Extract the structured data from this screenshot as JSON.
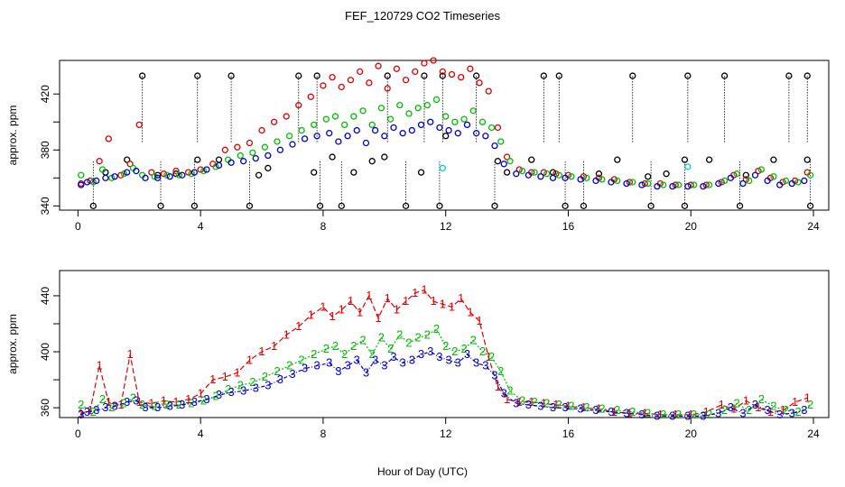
{
  "chart_data": {
    "type": "scatter",
    "title": "FEF_120729  CO2 Timeseries",
    "xlabel": "Hour of Day (UTC)",
    "xlim": [
      -0.6,
      24.5
    ],
    "xticks": [
      0,
      4,
      8,
      12,
      16,
      20,
      24
    ],
    "colors": {
      "s1": "#dd0000",
      "s2": "#00bb00",
      "s3": "#0000cc",
      "raw": "#000000",
      "cyan": "#00cccc"
    },
    "panels": [
      {
        "name": "top",
        "ylabel": "approx. ppm",
        "ylim": [
          337,
          444
        ],
        "yticks": [
          340,
          360,
          380,
          400,
          420
        ],
        "ytick_labels": [
          "340",
          "380",
          "420"
        ],
        "ytick_labeled": [
          340,
          380,
          420
        ],
        "raw_high": [
          2.1,
          3.9,
          5.0,
          7.2,
          7.8,
          10.1,
          11.3,
          11.9,
          13.0,
          15.2,
          15.7,
          18.1,
          19.9,
          21.1,
          23.2,
          23.8
        ],
        "raw_low": [
          0.5,
          2.7,
          3.8,
          5.6,
          7.9,
          8.6,
          10.7,
          11.8,
          13.6,
          15.9,
          16.5,
          18.7,
          19.8,
          21.6,
          23.9
        ],
        "raw_high_value": 433,
        "raw_low_value": 340,
        "raw_mid": [
          [
            0.9,
            364
          ],
          [
            1.6,
            373
          ],
          [
            2.6,
            362
          ],
          [
            3.2,
            363
          ],
          [
            3.9,
            373
          ],
          [
            4.6,
            373
          ],
          [
            5.9,
            362
          ],
          [
            6.2,
            367
          ],
          [
            7.7,
            364
          ],
          [
            8.3,
            375
          ],
          [
            9.0,
            364
          ],
          [
            9.6,
            372
          ],
          [
            10.0,
            375
          ],
          [
            11.2,
            364
          ],
          [
            12.0,
            390
          ],
          [
            13.7,
            372
          ],
          [
            14.0,
            364
          ],
          [
            14.8,
            373
          ],
          [
            15.5,
            364
          ],
          [
            17.0,
            363
          ],
          [
            17.6,
            373
          ],
          [
            18.6,
            361
          ],
          [
            19.2,
            363
          ],
          [
            19.8,
            373
          ],
          [
            20.6,
            373
          ],
          [
            21.8,
            362
          ],
          [
            22.7,
            373
          ],
          [
            23.8,
            373
          ]
        ],
        "cyan_points": [
          [
            11.9,
            367
          ],
          [
            19.9,
            368
          ]
        ],
        "series": [
          {
            "name": "1",
            "symbol": "o",
            "x": [
              0.1,
              0.4,
              0.7,
              1.0,
              1.4,
              1.7,
              2.0,
              2.4,
              2.8,
              3.2,
              3.6,
              4.0,
              4.4,
              4.8,
              5.2,
              5.6,
              6.0,
              6.4,
              6.8,
              7.2,
              7.6,
              8.0,
              8.3,
              8.6,
              8.9,
              9.2,
              9.5,
              9.8,
              10.1,
              10.4,
              10.7,
              11.0,
              11.3,
              11.6,
              11.9,
              12.2,
              12.5,
              12.8,
              13.1,
              13.4,
              13.7,
              14.0,
              14.4,
              14.8,
              15.2,
              15.6,
              16.0,
              16.5,
              17.0,
              17.5,
              18.0,
              18.5,
              19.0,
              19.5,
              20.0,
              20.5,
              21.0,
              21.4,
              21.8,
              22.2,
              22.6,
              23.0,
              23.4,
              23.8
            ],
            "y": [
              356,
              358,
              372,
              388,
              362,
              370,
              398,
              364,
              363,
              365,
              364,
              366,
              370,
              380,
              382,
              385,
              394,
              400,
              404,
              412,
              418,
              426,
              432,
              425,
              430,
              436,
              428,
              440,
              424,
              438,
              430,
              436,
              442,
              444,
              436,
              434,
              432,
              438,
              428,
              422,
              396,
              375,
              366,
              364,
              364,
              363,
              362,
              361,
              360,
              359,
              357,
              356,
              356,
              355,
              355,
              355,
              357,
              362,
              359,
              365,
              360,
              357,
              358,
              364
            ]
          },
          {
            "name": "2",
            "symbol": "o",
            "x": [
              0.1,
              0.5,
              0.8,
              1.1,
              1.5,
              1.8,
              2.1,
              2.5,
              2.9,
              3.3,
              3.7,
              4.1,
              4.5,
              4.9,
              5.3,
              5.7,
              6.1,
              6.5,
              6.9,
              7.3,
              7.7,
              8.1,
              8.4,
              8.7,
              9.0,
              9.3,
              9.6,
              9.9,
              10.2,
              10.5,
              10.8,
              11.1,
              11.4,
              11.7,
              12.0,
              12.3,
              12.6,
              12.9,
              13.2,
              13.5,
              13.8,
              14.1,
              14.5,
              14.9,
              15.3,
              15.7,
              16.1,
              16.6,
              17.1,
              17.6,
              18.1,
              18.6,
              19.1,
              19.6,
              20.1,
              20.6,
              21.1,
              21.5,
              21.9,
              22.3,
              22.7,
              23.1,
              23.5,
              23.9
            ],
            "y": [
              362,
              357,
              366,
              360,
              363,
              367,
              362,
              361,
              362,
              362,
              363,
              365,
              368,
              373,
              376,
              378,
              382,
              386,
              390,
              394,
              398,
              402,
              404,
              398,
              404,
              408,
              398,
              410,
              402,
              412,
              406,
              410,
              412,
              416,
              404,
              400,
              402,
              408,
              400,
              396,
              386,
              372,
              365,
              364,
              363,
              362,
              361,
              360,
              359,
              358,
              357,
              356,
              355,
              355,
              355,
              355,
              358,
              363,
              358,
              366,
              361,
              358,
              357,
              362
            ]
          },
          {
            "name": "3",
            "symbol": "o",
            "x": [
              0.1,
              0.3,
              0.6,
              0.9,
              1.2,
              1.6,
              1.9,
              2.2,
              2.6,
              3.0,
              3.4,
              3.8,
              4.2,
              4.6,
              5.0,
              5.4,
              5.8,
              6.2,
              6.6,
              7.0,
              7.4,
              7.8,
              8.2,
              8.5,
              8.8,
              9.1,
              9.4,
              9.7,
              10.0,
              10.3,
              10.6,
              10.9,
              11.2,
              11.5,
              11.8,
              12.1,
              12.4,
              12.7,
              13.0,
              13.3,
              13.6,
              13.9,
              14.3,
              14.7,
              15.1,
              15.5,
              15.9,
              16.4,
              16.9,
              17.4,
              17.9,
              18.4,
              18.9,
              19.4,
              19.9,
              20.4,
              20.9,
              21.3,
              21.7,
              22.1,
              22.5,
              22.9,
              23.3,
              23.7
            ],
            "y": [
              355,
              357,
              358,
              360,
              361,
              364,
              365,
              360,
              360,
              361,
              362,
              364,
              366,
              369,
              371,
              372,
              374,
              376,
              380,
              384,
              388,
              390,
              392,
              386,
              390,
              394,
              385,
              394,
              390,
              396,
              392,
              394,
              398,
              400,
              396,
              394,
              392,
              398,
              392,
              390,
              383,
              370,
              363,
              362,
              361,
              360,
              360,
              359,
              358,
              357,
              356,
              355,
              354,
              354,
              354,
              354,
              356,
              360,
              356,
              362,
              358,
              355,
              356,
              358
            ]
          }
        ]
      },
      {
        "name": "bottom",
        "ylabel": "approx. ppm",
        "ylim": [
          353,
          458
        ],
        "yticks": [
          360,
          380,
          400,
          420,
          440
        ],
        "ytick_labels": [
          "360",
          "400",
          "440"
        ],
        "ytick_labeled": [
          360,
          400,
          440
        ],
        "series": [
          {
            "name": "1",
            "symbol": "1",
            "x": [
              0.1,
              0.4,
              0.7,
              1.0,
              1.4,
              1.7,
              2.0,
              2.4,
              2.8,
              3.2,
              3.6,
              4.0,
              4.4,
              4.8,
              5.2,
              5.6,
              6.0,
              6.4,
              6.8,
              7.2,
              7.6,
              8.0,
              8.3,
              8.6,
              8.9,
              9.2,
              9.5,
              9.8,
              10.1,
              10.4,
              10.7,
              11.0,
              11.3,
              11.6,
              11.9,
              12.2,
              12.5,
              12.8,
              13.1,
              13.4,
              13.7,
              14.0,
              14.4,
              14.8,
              15.2,
              15.6,
              16.0,
              16.5,
              17.0,
              17.5,
              18.0,
              18.5,
              19.0,
              19.5,
              20.0,
              20.5,
              21.0,
              21.4,
              21.8,
              22.2,
              22.6,
              23.0,
              23.4,
              23.8
            ],
            "y": [
              356,
              358,
              390,
              364,
              362,
              398,
              364,
              363,
              365,
              364,
              366,
              370,
              380,
              382,
              385,
              394,
              400,
              404,
              412,
              418,
              426,
              432,
              425,
              430,
              436,
              428,
              440,
              424,
              438,
              430,
              436,
              442,
              444,
              436,
              434,
              432,
              438,
              428,
              422,
              396,
              375,
              366,
              364,
              364,
              363,
              362,
              361,
              360,
              359,
              357,
              356,
              356,
              355,
              355,
              355,
              357,
              362,
              359,
              365,
              360,
              357,
              358,
              364,
              367
            ]
          },
          {
            "name": "2",
            "symbol": "2",
            "x": [
              0.1,
              0.5,
              0.8,
              1.1,
              1.5,
              1.8,
              2.1,
              2.5,
              2.9,
              3.3,
              3.7,
              4.1,
              4.5,
              4.9,
              5.3,
              5.7,
              6.1,
              6.5,
              6.9,
              7.3,
              7.7,
              8.1,
              8.4,
              8.7,
              9.0,
              9.3,
              9.6,
              9.9,
              10.2,
              10.5,
              10.8,
              11.1,
              11.4,
              11.7,
              12.0,
              12.3,
              12.6,
              12.9,
              13.2,
              13.5,
              13.8,
              14.1,
              14.5,
              14.9,
              15.3,
              15.7,
              16.1,
              16.6,
              17.1,
              17.6,
              18.1,
              18.6,
              19.1,
              19.6,
              20.1,
              20.6,
              21.1,
              21.5,
              21.9,
              22.3,
              22.7,
              23.1,
              23.5,
              23.9
            ],
            "y": [
              362,
              357,
              366,
              360,
              363,
              367,
              362,
              361,
              362,
              362,
              363,
              365,
              368,
              373,
              376,
              378,
              382,
              386,
              390,
              394,
              398,
              402,
              404,
              398,
              404,
              408,
              398,
              410,
              402,
              412,
              406,
              410,
              412,
              416,
              404,
              400,
              402,
              408,
              400,
              396,
              386,
              372,
              365,
              364,
              363,
              362,
              361,
              360,
              359,
              358,
              357,
              356,
              355,
              355,
              355,
              355,
              358,
              363,
              358,
              366,
              361,
              358,
              357,
              362
            ]
          },
          {
            "name": "3",
            "symbol": "3",
            "x": [
              0.1,
              0.3,
              0.6,
              0.9,
              1.2,
              1.6,
              1.9,
              2.2,
              2.6,
              3.0,
              3.4,
              3.8,
              4.2,
              4.6,
              5.0,
              5.4,
              5.8,
              6.2,
              6.6,
              7.0,
              7.4,
              7.8,
              8.2,
              8.5,
              8.8,
              9.1,
              9.4,
              9.7,
              10.0,
              10.3,
              10.6,
              10.9,
              11.2,
              11.5,
              11.8,
              12.1,
              12.4,
              12.7,
              13.0,
              13.3,
              13.6,
              13.9,
              14.3,
              14.7,
              15.1,
              15.5,
              15.9,
              16.4,
              16.9,
              17.4,
              17.9,
              18.4,
              18.9,
              19.4,
              19.9,
              20.4,
              20.9,
              21.3,
              21.7,
              22.1,
              22.5,
              22.9,
              23.3,
              23.7
            ],
            "y": [
              355,
              357,
              358,
              360,
              361,
              364,
              365,
              360,
              360,
              361,
              362,
              364,
              366,
              369,
              371,
              372,
              374,
              376,
              380,
              384,
              388,
              390,
              392,
              386,
              390,
              394,
              385,
              394,
              390,
              396,
              392,
              394,
              398,
              400,
              396,
              394,
              392,
              398,
              392,
              390,
              383,
              370,
              363,
              362,
              361,
              360,
              360,
              359,
              358,
              357,
              356,
              355,
              354,
              354,
              354,
              354,
              356,
              360,
              356,
              362,
              358,
              355,
              356,
              358
            ]
          }
        ]
      }
    ]
  }
}
